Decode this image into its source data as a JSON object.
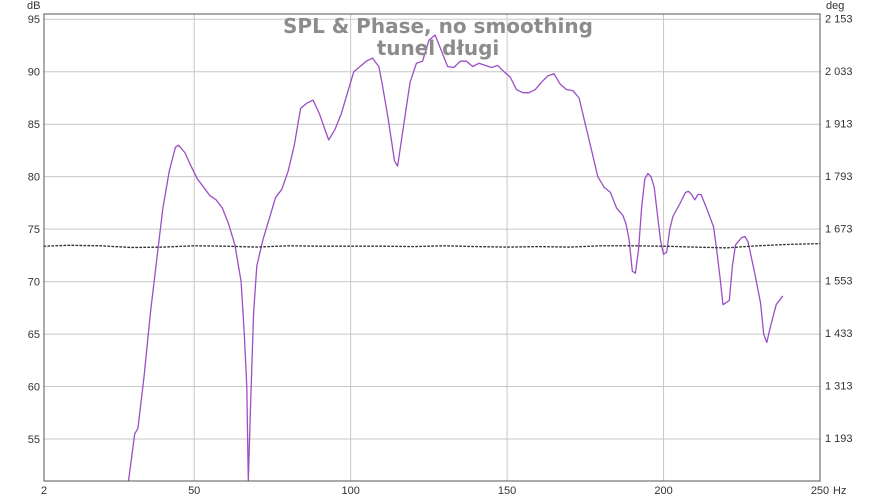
{
  "chart_data": {
    "type": "line",
    "title": "SPL & Phase, no smoothing",
    "subtitle": "tunel długi",
    "left_unit": "dB",
    "right_unit": "deg",
    "x_unit": "Hz",
    "xlim": [
      2,
      250
    ],
    "ylim": [
      51,
      95.5
    ],
    "y2lim": [
      1095,
      2163
    ],
    "x_ticks": [
      {
        "value": 2,
        "label": "2"
      },
      {
        "value": 50,
        "label": "50"
      },
      {
        "value": 100,
        "label": "100"
      },
      {
        "value": 150,
        "label": "150"
      },
      {
        "value": 200,
        "label": "200"
      },
      {
        "value": 250,
        "label": "250"
      }
    ],
    "y_ticks": [
      {
        "value": 95,
        "label": "95"
      },
      {
        "value": 90,
        "label": "90"
      },
      {
        "value": 85,
        "label": "85"
      },
      {
        "value": 80,
        "label": "80"
      },
      {
        "value": 75,
        "label": "75"
      },
      {
        "value": 70,
        "label": "70"
      },
      {
        "value": 65,
        "label": "65"
      },
      {
        "value": 60,
        "label": "60"
      },
      {
        "value": 55,
        "label": "55"
      }
    ],
    "y2_ticks": [
      {
        "value": 2153,
        "label": "2 153"
      },
      {
        "value": 2033,
        "label": "2 033"
      },
      {
        "value": 1913,
        "label": "1 913"
      },
      {
        "value": 1793,
        "label": "1 793"
      },
      {
        "value": 1673,
        "label": "1 673"
      },
      {
        "value": 1553,
        "label": "1 553"
      },
      {
        "value": 1433,
        "label": "1 433"
      },
      {
        "value": 1313,
        "label": "1 313"
      },
      {
        "value": 1193,
        "label": "1 193"
      }
    ],
    "grid": true,
    "series": [
      {
        "axis": "left",
        "color": "#9b4fc4",
        "style": "solid",
        "points": [
          [
            29,
            51
          ],
          [
            31,
            55.5
          ],
          [
            32,
            56
          ],
          [
            34,
            61
          ],
          [
            36,
            67
          ],
          [
            38,
            72
          ],
          [
            40,
            77
          ],
          [
            42,
            80.5
          ],
          [
            44,
            82.8
          ],
          [
            45,
            83
          ],
          [
            47,
            82.3
          ],
          [
            49,
            81
          ],
          [
            51,
            79.8
          ],
          [
            53,
            79
          ],
          [
            55,
            78.2
          ],
          [
            57,
            77.8
          ],
          [
            59,
            77
          ],
          [
            61,
            75.5
          ],
          [
            63,
            73.5
          ],
          [
            65,
            70
          ],
          [
            66,
            65
          ],
          [
            66.8,
            60
          ],
          [
            67.3,
            51
          ],
          [
            68,
            58
          ],
          [
            69,
            67
          ],
          [
            70,
            71.5
          ],
          [
            72,
            74
          ],
          [
            74,
            76
          ],
          [
            76,
            78
          ],
          [
            78,
            78.8
          ],
          [
            80,
            80.5
          ],
          [
            82,
            83
          ],
          [
            84,
            86.5
          ],
          [
            86,
            87
          ],
          [
            88,
            87.3
          ],
          [
            90,
            86
          ],
          [
            92,
            84.3
          ],
          [
            93,
            83.5
          ],
          [
            95,
            84.5
          ],
          [
            97,
            86
          ],
          [
            99,
            88
          ],
          [
            101,
            90
          ],
          [
            103,
            90.5
          ],
          [
            105,
            91
          ],
          [
            107,
            91.3
          ],
          [
            109,
            90.5
          ],
          [
            110,
            89
          ],
          [
            112,
            85.5
          ],
          [
            114,
            81.5
          ],
          [
            115,
            81
          ],
          [
            117,
            85
          ],
          [
            119,
            89
          ],
          [
            121,
            90.8
          ],
          [
            123,
            91
          ],
          [
            125,
            93
          ],
          [
            127,
            93.5
          ],
          [
            129,
            92
          ],
          [
            131,
            90.5
          ],
          [
            133,
            90.4
          ],
          [
            135,
            91
          ],
          [
            137,
            91
          ],
          [
            139,
            90.5
          ],
          [
            141,
            90.8
          ],
          [
            143,
            90.6
          ],
          [
            145,
            90.4
          ],
          [
            147,
            90.6
          ],
          [
            149,
            90
          ],
          [
            151,
            89.5
          ],
          [
            153,
            88.3
          ],
          [
            155,
            88
          ],
          [
            157,
            88
          ],
          [
            159,
            88.3
          ],
          [
            161,
            89
          ],
          [
            163,
            89.6
          ],
          [
            165,
            89.8
          ],
          [
            167,
            88.8
          ],
          [
            169,
            88.3
          ],
          [
            171,
            88.2
          ],
          [
            173,
            87.5
          ],
          [
            175,
            85
          ],
          [
            177,
            82.5
          ],
          [
            179,
            80
          ],
          [
            181,
            79
          ],
          [
            183,
            78.5
          ],
          [
            185,
            77
          ],
          [
            187,
            76.3
          ],
          [
            188,
            75.5
          ],
          [
            189,
            74
          ],
          [
            190,
            71
          ],
          [
            191,
            70.8
          ],
          [
            192,
            73
          ],
          [
            193,
            77
          ],
          [
            194,
            79.8
          ],
          [
            195,
            80.3
          ],
          [
            196,
            80
          ],
          [
            197,
            79
          ],
          [
            198,
            76.5
          ],
          [
            199,
            74
          ],
          [
            200,
            72.6
          ],
          [
            201,
            72.8
          ],
          [
            202,
            75
          ],
          [
            203,
            76.2
          ],
          [
            205,
            77.3
          ],
          [
            207,
            78.5
          ],
          [
            208,
            78.6
          ],
          [
            209,
            78.3
          ],
          [
            210,
            77.8
          ],
          [
            211,
            78.3
          ],
          [
            212,
            78.3
          ],
          [
            214,
            76.8
          ],
          [
            216,
            75.2
          ],
          [
            217,
            73
          ],
          [
            218,
            70.5
          ],
          [
            219,
            67.8
          ],
          [
            220,
            68
          ],
          [
            221,
            68.2
          ],
          [
            222,
            71.5
          ],
          [
            223,
            73.5
          ],
          [
            225,
            74.2
          ],
          [
            226,
            74.3
          ],
          [
            227,
            73.8
          ],
          [
            229,
            71
          ],
          [
            231,
            68
          ],
          [
            232,
            65
          ],
          [
            233,
            64.2
          ],
          [
            234,
            65.5
          ],
          [
            236,
            67.8
          ],
          [
            238,
            68.6
          ]
        ]
      },
      {
        "axis": "right",
        "color": "#333333",
        "style": "dotted",
        "points": [
          [
            2,
            1632
          ],
          [
            10,
            1634
          ],
          [
            20,
            1633
          ],
          [
            30,
            1629
          ],
          [
            40,
            1630
          ],
          [
            50,
            1633
          ],
          [
            60,
            1632
          ],
          [
            70,
            1630
          ],
          [
            80,
            1633
          ],
          [
            90,
            1632
          ],
          [
            100,
            1632
          ],
          [
            110,
            1632
          ],
          [
            120,
            1631
          ],
          [
            130,
            1633
          ],
          [
            140,
            1631
          ],
          [
            150,
            1630
          ],
          [
            160,
            1631
          ],
          [
            170,
            1630
          ],
          [
            180,
            1633
          ],
          [
            190,
            1633
          ],
          [
            200,
            1632
          ],
          [
            210,
            1630
          ],
          [
            220,
            1628
          ],
          [
            230,
            1633
          ],
          [
            240,
            1636
          ],
          [
            250,
            1638
          ]
        ]
      }
    ]
  },
  "colors": {
    "grid": "#c8c8c8",
    "frame": "#555555",
    "title": "#8c8c8c",
    "spl": "#9b4fc4",
    "phase": "#333333"
  }
}
